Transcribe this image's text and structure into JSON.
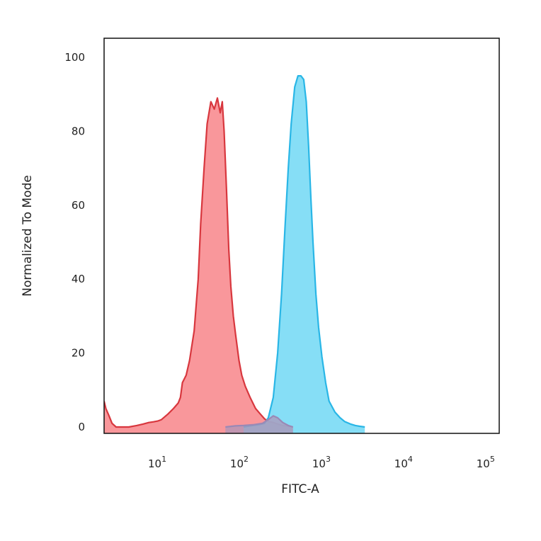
{
  "chart_data": {
    "type": "area",
    "title": "",
    "xlabel": "FITC-A",
    "ylabel": "Normalized To Mode",
    "x_scale": "log",
    "xlim": [
      2,
      130000
    ],
    "ylim": [
      0,
      100
    ],
    "grid": false,
    "legend": "none",
    "x_ticks": [
      {
        "base": "10",
        "exp": "1",
        "value": 10
      },
      {
        "base": "10",
        "exp": "2",
        "value": 100
      },
      {
        "base": "10",
        "exp": "3",
        "value": 1000
      },
      {
        "base": "10",
        "exp": "4",
        "value": 10000
      },
      {
        "base": "10",
        "exp": "5",
        "value": 100000
      }
    ],
    "y_ticks": [
      {
        "label": "0",
        "value": 0
      },
      {
        "label": "20",
        "value": 20
      },
      {
        "label": "40",
        "value": 40
      },
      {
        "label": "60",
        "value": 60
      },
      {
        "label": "80",
        "value": 80
      },
      {
        "label": "100",
        "value": 100
      }
    ],
    "series": [
      {
        "color_fill": "#f8858a",
        "color_line": "#d8373e",
        "x": [
          2,
          2.1,
          2.3,
          2.5,
          2.8,
          3.2,
          4,
          5,
          6,
          7,
          8,
          9,
          10,
          12,
          14,
          16,
          17,
          18,
          20,
          22,
          25,
          28,
          30,
          33,
          36,
          40,
          44,
          48,
          52,
          55,
          58,
          62,
          66,
          70,
          75,
          80,
          88,
          95,
          105,
          120,
          140,
          160,
          180,
          200,
          230,
          260,
          300,
          350,
          400
        ],
        "y": [
          7,
          5,
          3,
          1,
          0,
          0,
          0,
          0.4,
          0.8,
          1.2,
          1.4,
          1.6,
          2,
          3.5,
          5,
          6.5,
          8,
          12,
          14,
          18,
          26,
          40,
          55,
          70,
          82,
          88,
          86,
          89,
          85,
          88,
          80,
          64,
          48,
          38,
          30,
          25,
          18,
          14,
          11,
          8,
          5,
          3.5,
          2.2,
          1.5,
          1.2,
          0.8,
          0.4,
          0.2,
          0
        ]
      },
      {
        "color_fill": "#71d8f5",
        "color_line": "#29b6e6",
        "x": [
          100,
          120,
          150,
          180,
          200,
          230,
          260,
          290,
          320,
          350,
          380,
          420,
          460,
          500,
          540,
          580,
          620,
          660,
          700,
          760,
          820,
          900,
          1000,
          1100,
          1300,
          1500,
          1700,
          2000,
          2300,
          2600,
          3000
        ],
        "y": [
          0,
          0.3,
          0.6,
          1,
          2.5,
          8,
          20,
          36,
          54,
          70,
          82,
          92,
          95,
          95,
          94,
          88,
          76,
          62,
          50,
          36,
          27,
          19,
          12,
          7,
          4,
          2.5,
          1.5,
          0.8,
          0.4,
          0.2,
          0
        ]
      },
      {
        "color_fill": "#ad96b8",
        "color_line": "#9a89b5",
        "x": [
          60,
          80,
          100,
          130,
          170,
          200,
          230,
          260,
          300,
          350,
          400
        ],
        "y": [
          0,
          0.3,
          0.4,
          0.6,
          1,
          2,
          3,
          2.5,
          1.2,
          0.4,
          0
        ]
      }
    ]
  }
}
